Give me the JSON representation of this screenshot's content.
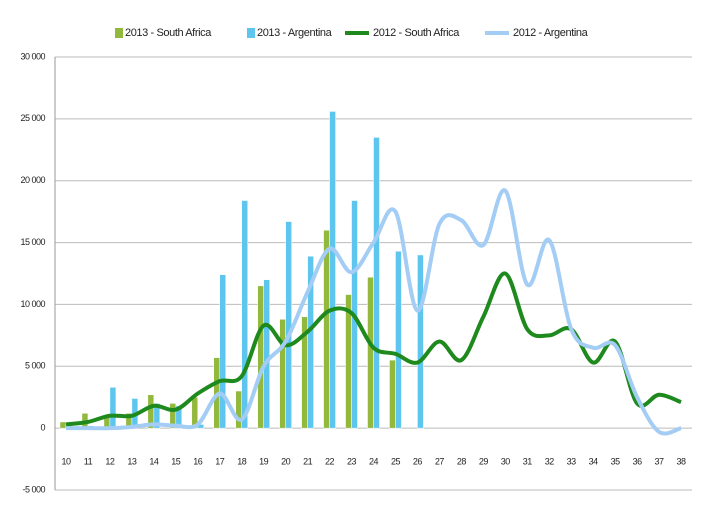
{
  "chart_data": {
    "type": "bar_line",
    "categories": [
      "10",
      "11",
      "12",
      "13",
      "14",
      "15",
      "16",
      "17",
      "18",
      "19",
      "20",
      "21",
      "22",
      "23",
      "24",
      "25",
      "26",
      "27",
      "28",
      "29",
      "30",
      "31",
      "32",
      "33",
      "34",
      "35",
      "36",
      "37",
      "38"
    ],
    "series": [
      {
        "name": "2013 - South Africa",
        "type": "bar",
        "color": "#93b83e",
        "values": [
          500,
          1200,
          1000,
          1200,
          2700,
          2000,
          2500,
          5700,
          3000,
          11500,
          8800,
          9000,
          16000,
          10800,
          12200,
          5500,
          null,
          null,
          null,
          null,
          null,
          null,
          null,
          null,
          null,
          null,
          null,
          null,
          null
        ]
      },
      {
        "name": "2013 - Argentina",
        "type": "bar",
        "color": "#5ec6ee",
        "values": [
          300,
          200,
          3300,
          2400,
          2000,
          1800,
          300,
          12400,
          18400,
          12000,
          16700,
          13900,
          25600,
          18400,
          23500,
          14300,
          14000,
          null,
          null,
          null,
          null,
          null,
          null,
          null,
          null,
          null,
          null,
          null,
          null
        ]
      },
      {
        "name": "2012 - South Africa",
        "type": "line",
        "color": "#1e8a1e",
        "values": [
          300,
          500,
          1000,
          1000,
          1800,
          1500,
          2800,
          3800,
          4200,
          8300,
          6700,
          7800,
          9500,
          9300,
          6500,
          6000,
          5300,
          7000,
          5500,
          9000,
          12500,
          8000,
          7500,
          8000,
          5300,
          7000,
          2000,
          2700,
          2100
        ]
      },
      {
        "name": "2012 - Argentina",
        "type": "line",
        "color": "#a3cdf5",
        "values": [
          0,
          0,
          0,
          100,
          300,
          200,
          300,
          2800,
          700,
          5000,
          7000,
          11000,
          14500,
          12600,
          15000,
          17500,
          9500,
          16500,
          16800,
          14800,
          19200,
          11600,
          15200,
          8000,
          6500,
          6700,
          2500,
          -300,
          0
        ]
      }
    ],
    "ylim": [
      -5000,
      30000
    ],
    "yticks": [
      {
        "value": -5000,
        "label": "-5 000"
      },
      0,
      {
        "value": 5000,
        "label": "5 000"
      },
      {
        "value": 10000,
        "label": "10 000"
      },
      {
        "value": 15000,
        "label": "15 000"
      },
      {
        "value": 20000,
        "label": "20 000"
      },
      {
        "value": 25000,
        "label": "25 000"
      },
      {
        "value": 30000,
        "label": "30 000"
      }
    ],
    "grid": true,
    "legend": "top"
  }
}
